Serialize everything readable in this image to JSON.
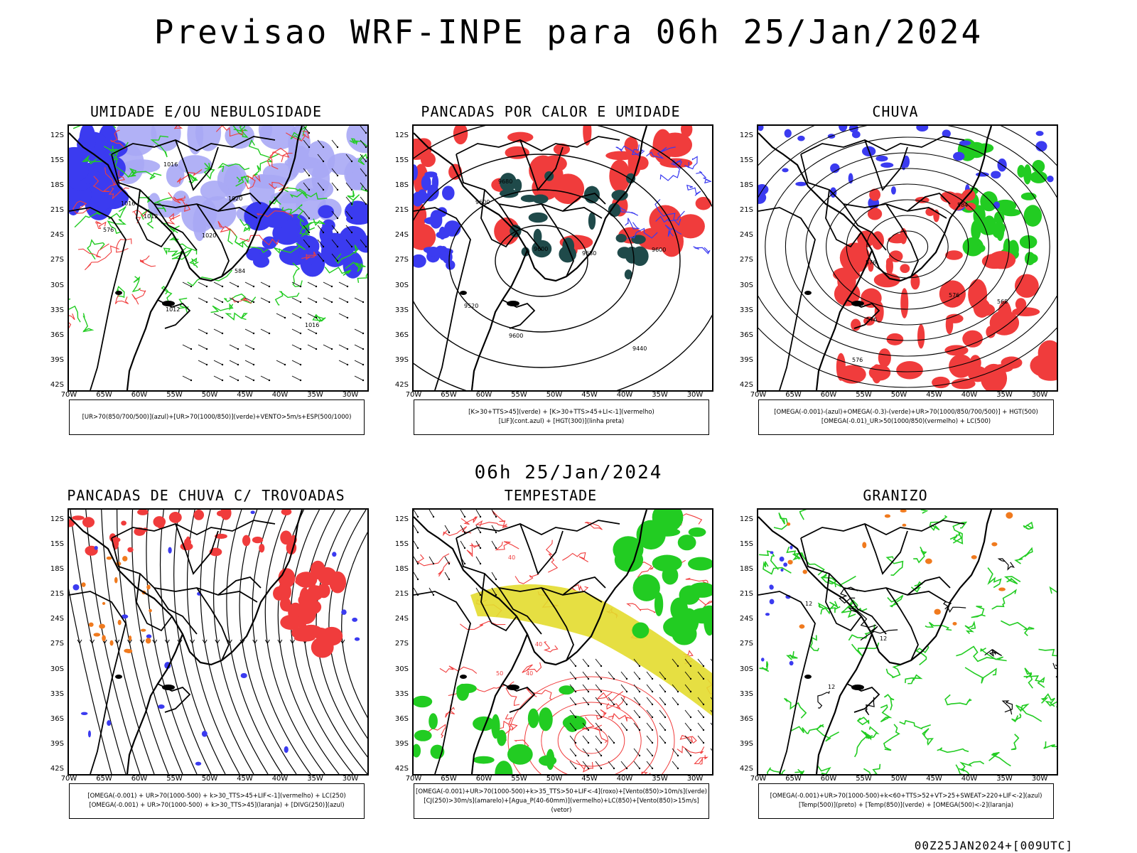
{
  "title": "Previsao WRF-INPE  para 06h 25/Jan/2024",
  "mid_title": "06h 25/Jan/2024",
  "footer": "00Z25JAN2024+[009UTC]",
  "axes": {
    "lat_labels": [
      "12S",
      "15S",
      "18S",
      "21S",
      "24S",
      "27S",
      "30S",
      "33S",
      "36S",
      "39S",
      "42S"
    ],
    "lon_labels": [
      "70W",
      "65W",
      "60W",
      "55W",
      "50W",
      "45W",
      "40W",
      "35W",
      "30W"
    ]
  },
  "colors": {
    "blue": "#3b3bf0",
    "lightblue": "#a9a9f5",
    "green": "#22cc22",
    "red": "#f03c3c",
    "yellow": "#e3dc2e",
    "darkteal": "#1f4a4a",
    "orange": "#f07a1e",
    "black": "#000000"
  },
  "panels": [
    {
      "title": "UMIDADE E/OU NEBULOSIDADE",
      "legend": [
        "[UR>70(850/700/500)](azul)+[UR>70(1000/850)](verde)+VENTO>5m/s+ESP(500/1000)"
      ],
      "map_labels": [
        "1012",
        "1016",
        "1020",
        "1016",
        "1012",
        "1020",
        "576",
        "584",
        "1016"
      ]
    },
    {
      "title": "PANCADAS POR CALOR E UMIDADE",
      "legend": [
        "[K>30+TTS>45](verde) + [K>30+TTS>45+LI<-1](vermelho)",
        "[LIF](cont.azul) + [HGT(300)](linha preta)"
      ],
      "map_labels": [
        "9680",
        "9600",
        "9600",
        "9440",
        "9520",
        "9600",
        "9680",
        "9600"
      ]
    },
    {
      "title": "CHUVA",
      "legend": [
        "[OMEGA(-0.001)-(azul)+OMEGA(-0.3)-(verde)+UR>70(1000/850/700/500)] + HGT(500)",
        "[OMEGA(-0.01)_UR>50(1000/850)(vermelho) + LC(500)"
      ],
      "map_labels": [
        "576",
        "576",
        "576",
        "576",
        "568",
        "584"
      ]
    },
    {
      "title": "PANCADAS DE CHUVA C/ TROVOADAS",
      "legend": [
        "[OMEGA(-0.001) + UR>70(1000-500) + k>30_TTS>45+LIF<-1](vermelho) + LC(250)",
        "[OMEGA(-0.001) + UR>70(1000-500) + k>30_TTS>45](laranja) + [DIVG(250)](azul)"
      ],
      "map_labels": []
    },
    {
      "title": "TEMPESTADE",
      "legend": [
        "[OMEGA(-0.001)+UR>70(1000-500)+k>35_TTS>50+LIF<-4](roxo)+[Vento(850)>10m/s](verde)",
        "[CJ(250)>30m/s](amarelo)+[Agua_P(40-60mm)](vermelho)+LC(850)+[Vento(850)>15m/s](vetor)"
      ],
      "map_labels": [
        "40",
        "40",
        "50",
        "40"
      ]
    },
    {
      "title": "GRANIZO",
      "legend": [
        "[OMEGA(-0.001)+UR>70(1000-500)+k<60+TTS>52+VT>25+SWEAT>220+LIF<-2](azul)",
        "[Temp(500)](preto) + [Temp(850)](verde) + [OMEGA(500)<-2](laranja)"
      ],
      "map_labels": [
        "12",
        "12",
        "12"
      ]
    }
  ]
}
